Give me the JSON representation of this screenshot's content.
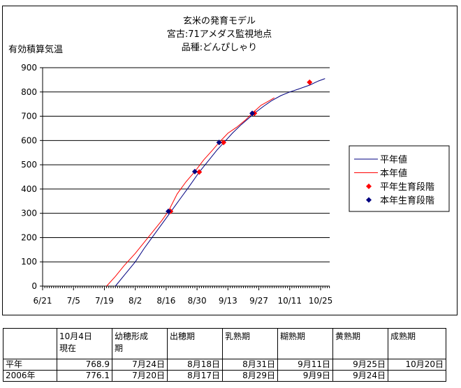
{
  "chart_data": {
    "type": "line",
    "title": [
      "玄米の発育モデル",
      "宮古:71アメダス監視地点",
      "品種:どんぴしゃり"
    ],
    "ylabel": "有効積算気温",
    "xlabel": "",
    "ylim": [
      0,
      900
    ],
    "yticks": [
      0,
      100,
      200,
      300,
      400,
      500,
      600,
      700,
      800,
      900
    ],
    "xticks": [
      "6/21",
      "7/5",
      "7/19",
      "8/2",
      "8/16",
      "8/30",
      "9/13",
      "9/27",
      "10/11",
      "10/25"
    ],
    "grid": "horizontal",
    "legend_position": "right",
    "colors": {
      "normal": "#000080",
      "this_year": "#ff0000",
      "normal_stage": "#ff0000",
      "this_year_stage": "#000080"
    },
    "series": [
      {
        "name": "平年値",
        "kind": "line",
        "x": [
          "7/24",
          "7/28",
          "8/2",
          "8/6",
          "8/10",
          "8/14",
          "8/18",
          "8/22",
          "8/26",
          "8/31",
          "9/4",
          "9/8",
          "9/11",
          "9/15",
          "9/19",
          "9/25",
          "9/29",
          "10/3",
          "10/7",
          "10/11",
          "10/15",
          "10/20",
          "10/24",
          "10/27"
        ],
        "values": [
          0,
          45,
          100,
          155,
          205,
          255,
          305,
          355,
          405,
          470,
          515,
          560,
          590,
          630,
          665,
          712,
          740,
          765,
          785,
          800,
          812,
          828,
          845,
          855
        ]
      },
      {
        "name": "本年値",
        "kind": "line",
        "x": [
          "7/20",
          "7/24",
          "7/28",
          "8/2",
          "8/6",
          "8/10",
          "8/14",
          "8/17",
          "8/21",
          "8/25",
          "8/29",
          "9/2",
          "9/6",
          "9/9",
          "9/13",
          "9/17",
          "9/21",
          "9/24",
          "9/28",
          "10/2",
          "10/4"
        ],
        "values": [
          0,
          40,
          85,
          135,
          180,
          225,
          270,
          308,
          380,
          430,
          472,
          520,
          560,
          592,
          630,
          655,
          685,
          712,
          745,
          765,
          776
        ]
      },
      {
        "name": "平年生育段階",
        "kind": "marker",
        "x": [
          "8/18",
          "8/31",
          "9/11",
          "9/25",
          "10/20"
        ],
        "values": [
          308,
          470,
          592,
          712,
          840
        ]
      },
      {
        "name": "本年生育段階",
        "kind": "marker",
        "x": [
          "8/17",
          "8/29",
          "9/9",
          "9/24"
        ],
        "values": [
          308,
          472,
          592,
          712
        ]
      }
    ]
  },
  "table": {
    "headers": [
      "",
      "10月4日\n現在",
      "幼穂形成\n期",
      "出穂期",
      "乳熟期",
      "糊熟期",
      "黄熟期",
      "成熟期"
    ],
    "rows": [
      [
        "平年",
        "768.9",
        "7月24日",
        "8月18日",
        "8月31日",
        "9月11日",
        "9月25日",
        "10月20日"
      ],
      [
        "2006年",
        "776.1",
        "7月20日",
        "8月17日",
        "8月29日",
        "9月9日",
        "9月24日",
        ""
      ]
    ]
  }
}
